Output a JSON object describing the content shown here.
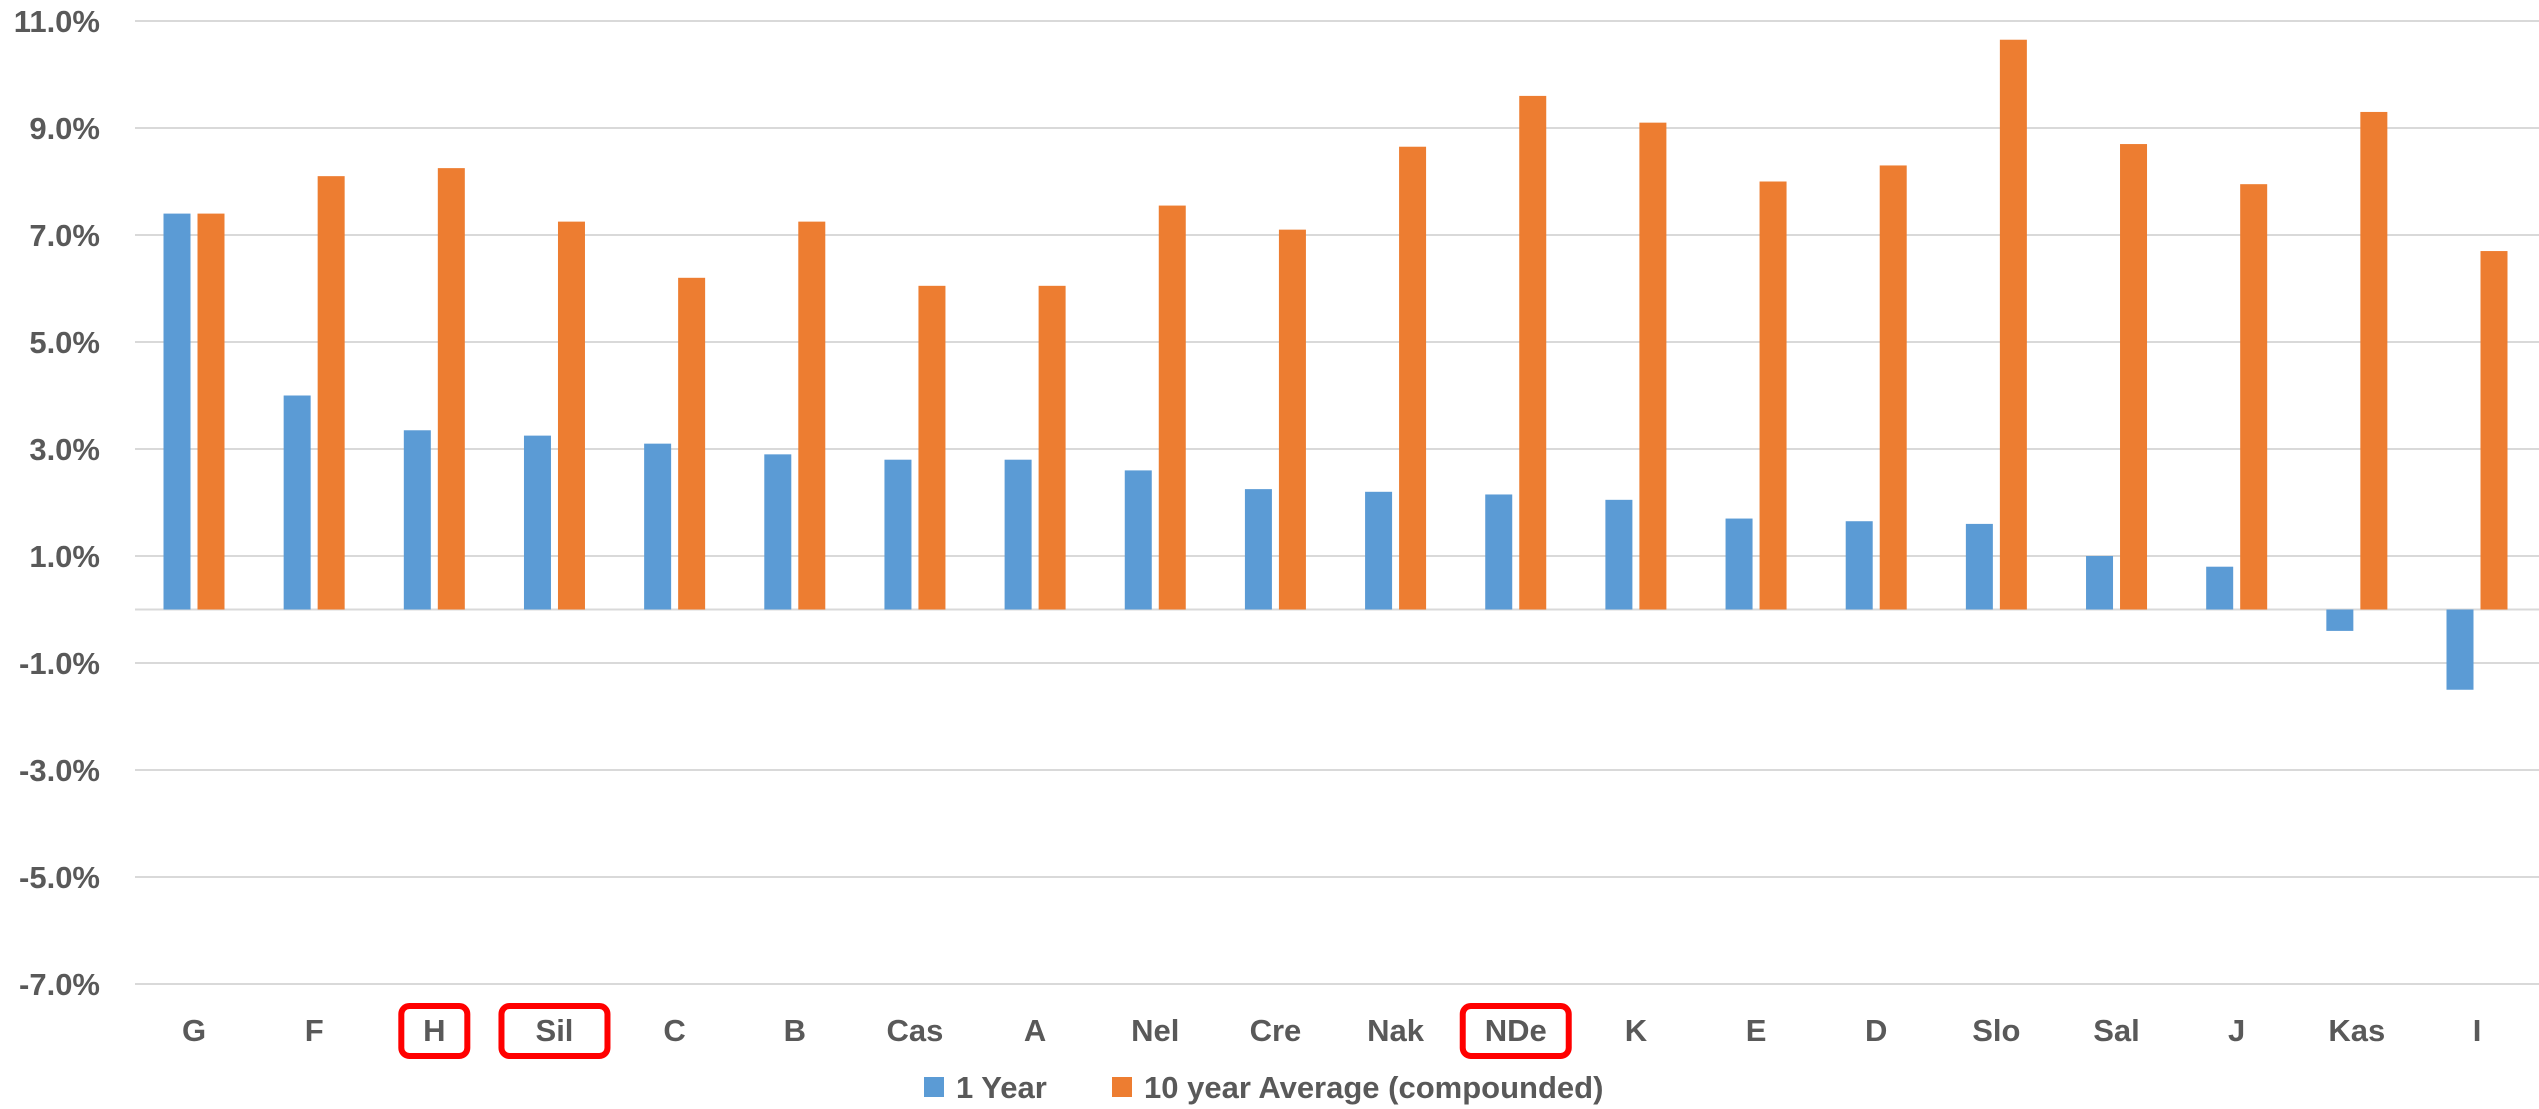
{
  "chart_data": {
    "type": "bar",
    "title": "",
    "xlabel": "",
    "ylabel": "",
    "ylim": [
      -7.0,
      11.0
    ],
    "yticks": [
      "11.0%",
      "9.0%",
      "7.0%",
      "5.0%",
      "3.0%",
      "1.0%",
      "-1.0%",
      "-3.0%",
      "-5.0%",
      "-7.0%"
    ],
    "ytick_values": [
      11.0,
      9.0,
      7.0,
      5.0,
      3.0,
      1.0,
      -1.0,
      -3.0,
      -5.0,
      -7.0
    ],
    "grid": true,
    "legend_position": "bottom",
    "categories": [
      "G",
      "F",
      "H",
      "Sil",
      "C",
      "B",
      "Cas",
      "A",
      "Nel",
      "Cre",
      "Nak",
      "NDe",
      "K",
      "E",
      "D",
      "Slo",
      "Sal",
      "J",
      "Kas",
      "I"
    ],
    "highlighted_categories": [
      "H",
      "Sil",
      "NDe"
    ],
    "series": [
      {
        "name": "1 Year",
        "color": "#5b9bd5",
        "values": [
          7.4,
          4.0,
          3.35,
          3.25,
          3.1,
          2.9,
          2.8,
          2.8,
          2.6,
          2.25,
          2.2,
          2.15,
          2.05,
          1.7,
          1.65,
          1.6,
          1.0,
          0.8,
          -0.4,
          -1.5
        ]
      },
      {
        "name": "10 year Average (compounded)",
        "color": "#ed7d31",
        "values": [
          7.4,
          8.1,
          8.25,
          7.25,
          6.2,
          7.25,
          6.05,
          6.05,
          7.55,
          7.1,
          8.65,
          9.6,
          9.1,
          8.0,
          8.3,
          10.65,
          8.7,
          7.95,
          9.3,
          6.7
        ]
      }
    ],
    "highlight_color": "#ff0000",
    "gridline_color": "#d9d9d9",
    "text_color": "#595959"
  }
}
